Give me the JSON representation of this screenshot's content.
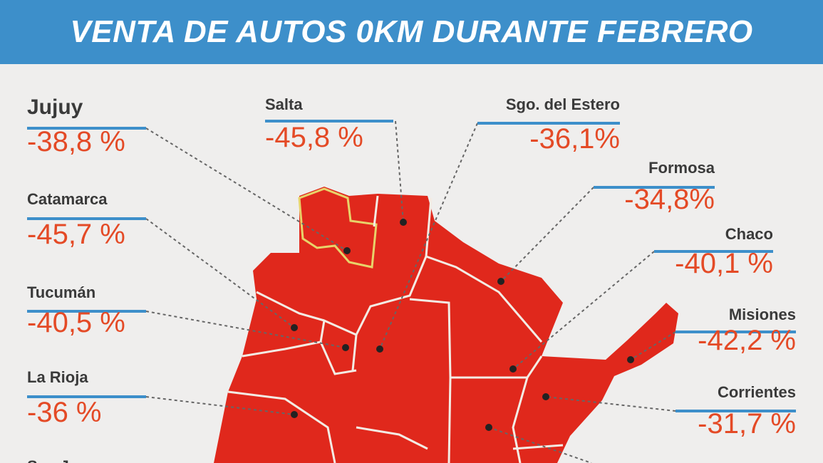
{
  "header": {
    "title": "VENTA DE AUTOS 0KM DURANTE FEBRERO"
  },
  "regions": [
    {
      "name": "Jujuy",
      "label": "-38,8 %"
    },
    {
      "name": "Catamarca",
      "label": "-45,7 %"
    },
    {
      "name": "Tucumán",
      "label": "-40,5 %"
    },
    {
      "name": "La Rioja",
      "label": "-36 %"
    },
    {
      "name": "Salta",
      "label": "-45,8 %"
    },
    {
      "name": "Sgo. del Estero",
      "label": "-36,1%"
    },
    {
      "name": "Formosa",
      "label": "-34,8%"
    },
    {
      "name": "Chaco",
      "label": "-40,1 %"
    },
    {
      "name": "Misiones",
      "label": "-42,2 %"
    },
    {
      "name": "Corrientes",
      "label": "-31,7 %"
    },
    {
      "name": "San Juan"
    }
  ]
}
